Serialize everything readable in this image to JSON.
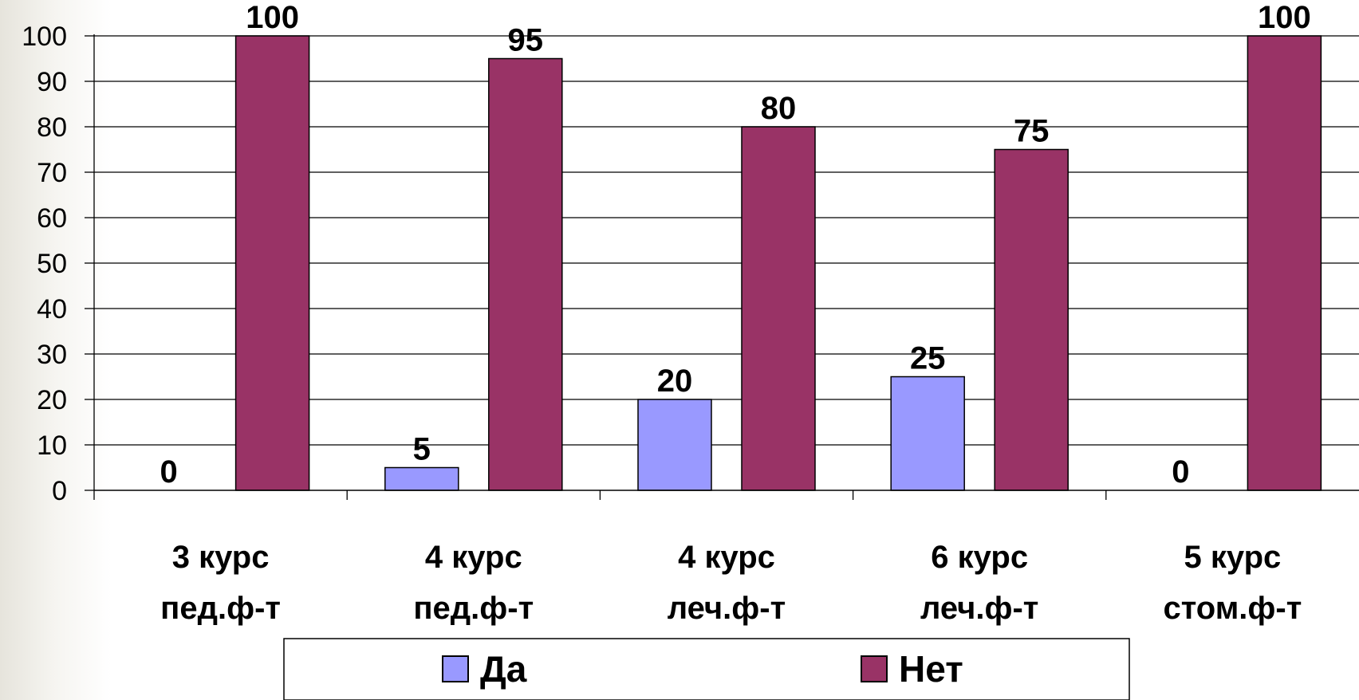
{
  "chart_data": {
    "type": "bar",
    "categories": [
      [
        "3 курс",
        "пед.ф-т"
      ],
      [
        "4 курс",
        "пед.ф-т"
      ],
      [
        "4 курс",
        "леч.ф-т"
      ],
      [
        "6 курс",
        "леч.ф-т"
      ],
      [
        "5 курс",
        "стом.ф-т"
      ]
    ],
    "series": [
      {
        "name": "Да",
        "values": [
          0,
          5,
          20,
          25,
          0
        ],
        "color": "#9999ff"
      },
      {
        "name": "Нет",
        "values": [
          100,
          95,
          80,
          75,
          100
        ],
        "color": "#993366"
      }
    ],
    "ylim": [
      0,
      100
    ],
    "yticks": [
      0,
      10,
      20,
      30,
      40,
      50,
      60,
      70,
      80,
      90,
      100
    ],
    "grid": true,
    "legend_position": "bottom"
  }
}
